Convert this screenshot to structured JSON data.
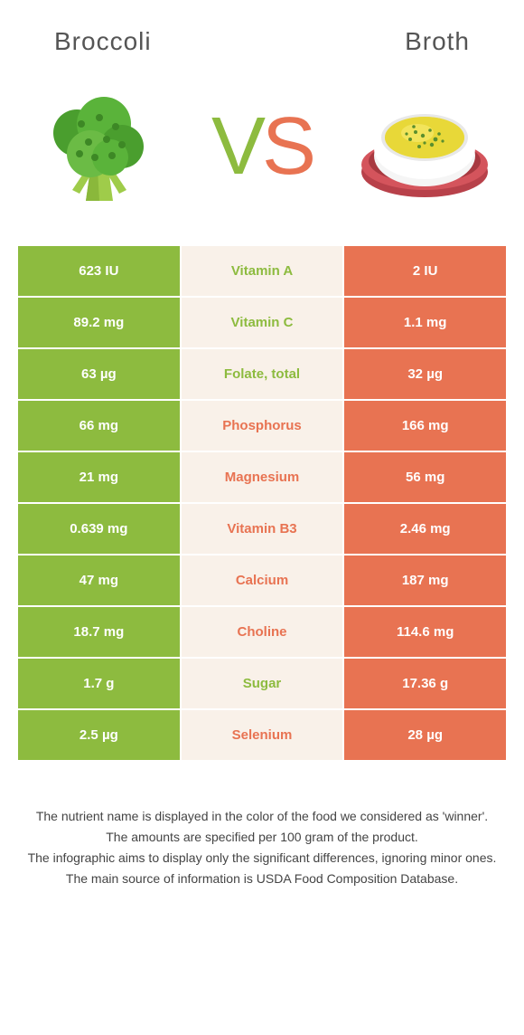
{
  "header": {
    "left_title": "Broccoli",
    "right_title": "Broth"
  },
  "vs": {
    "v": "V",
    "s": "S"
  },
  "colors": {
    "green": "#8dbb3f",
    "orange": "#e87352",
    "mid_bg": "#f9f1e9",
    "row_sep": "#ffffff",
    "title_color": "#555555",
    "footer_color": "#444444"
  },
  "table": {
    "rows": [
      {
        "left": "623 IU",
        "mid": "Vitamin A",
        "right": "2 IU",
        "winner": "left"
      },
      {
        "left": "89.2 mg",
        "mid": "Vitamin C",
        "right": "1.1 mg",
        "winner": "left"
      },
      {
        "left": "63 µg",
        "mid": "Folate, total",
        "right": "32 µg",
        "winner": "left"
      },
      {
        "left": "66 mg",
        "mid": "Phosphorus",
        "right": "166 mg",
        "winner": "right"
      },
      {
        "left": "21 mg",
        "mid": "Magnesium",
        "right": "56 mg",
        "winner": "right"
      },
      {
        "left": "0.639 mg",
        "mid": "Vitamin B3",
        "right": "2.46 mg",
        "winner": "right"
      },
      {
        "left": "47 mg",
        "mid": "Calcium",
        "right": "187 mg",
        "winner": "right"
      },
      {
        "left": "18.7 mg",
        "mid": "Choline",
        "right": "114.6 mg",
        "winner": "right"
      },
      {
        "left": "1.7 g",
        "mid": "Sugar",
        "right": "17.36 g",
        "winner": "left"
      },
      {
        "left": "2.5 µg",
        "mid": "Selenium",
        "right": "28 µg",
        "winner": "right"
      }
    ]
  },
  "footer": {
    "lines": [
      "The nutrient name is displayed in the color of the food we considered as 'winner'.",
      "The amounts are specified per 100 gram of the product.",
      "The infographic aims to display only the significant differences, ignoring minor ones.",
      "The main source of information is USDA Food Composition Database."
    ]
  }
}
